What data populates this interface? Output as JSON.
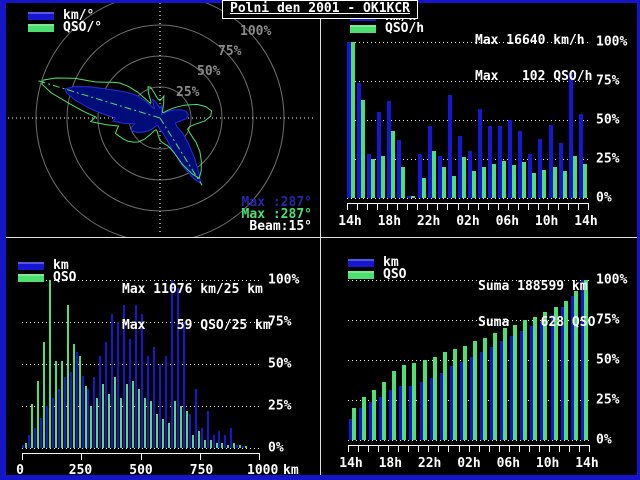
{
  "app": {
    "title": "Polni den 2001 - OK1KCR"
  },
  "colors": {
    "frame_blue": "#1414c8",
    "divider": "#e0e0e0",
    "bar_blue": "#1717d2",
    "bar_green": "#4de070",
    "ring_gray": "#6f6f6f",
    "ring_label_gray": "#8a8a8a",
    "dim_blue_text": "#2727a6",
    "radar_km_fill": "#000d78",
    "radar_km_stroke": "#2a2ae0"
  },
  "polar": {
    "ring_labels": [
      "25%",
      "50%",
      "75%",
      "100%"
    ],
    "stats": {
      "max_km": "Max :287°",
      "max_qso": "Max :287°",
      "beam": "Beam:15°"
    }
  },
  "chart_data": [
    {
      "type": "polar",
      "name": "rate-per-degree",
      "title": "km and QSO per beam heading (% of max)",
      "beam_azimuth_deg": 287,
      "beam_width_deg": 15,
      "max_km_azimuth_deg": 287,
      "max_qso_azimuth_deg": 287,
      "ring_percents": [
        25,
        50,
        75,
        100
      ],
      "axis_lines": [
        {
          "az": 287,
          "pct": 103
        },
        {
          "az": 148,
          "pct": 64
        }
      ],
      "series": [
        {
          "name": "km/°",
          "points": [
            [
              0,
              8
            ],
            [
              8,
              10
            ],
            [
              14,
              6
            ],
            [
              20,
              4
            ],
            [
              28,
              3
            ],
            [
              36,
              4
            ],
            [
              44,
              6
            ],
            [
              52,
              9
            ],
            [
              60,
              13
            ],
            [
              68,
              18
            ],
            [
              76,
              22
            ],
            [
              84,
              23
            ],
            [
              92,
              21
            ],
            [
              100,
              16
            ],
            [
              108,
              13
            ],
            [
              116,
              15
            ],
            [
              124,
              22
            ],
            [
              132,
              31
            ],
            [
              140,
              44
            ],
            [
              145,
              55
            ],
            [
              148,
              62
            ],
            [
              151,
              56
            ],
            [
              155,
              42
            ],
            [
              159,
              27
            ],
            [
              164,
              16
            ],
            [
              170,
              12
            ],
            [
              176,
              10
            ],
            [
              182,
              9
            ],
            [
              190,
              7
            ],
            [
              198,
              6
            ],
            [
              206,
              7
            ],
            [
              214,
              10
            ],
            [
              222,
              14
            ],
            [
              230,
              18
            ],
            [
              238,
              22
            ],
            [
              246,
              25
            ],
            [
              252,
              24
            ],
            [
              257,
              21
            ],
            [
              262,
              30
            ],
            [
              266,
              38
            ],
            [
              270,
              36
            ],
            [
              274,
              46
            ],
            [
              278,
              58
            ],
            [
              282,
              70
            ],
            [
              285,
              78
            ],
            [
              287,
              80
            ],
            [
              290,
              74
            ],
            [
              294,
              62
            ],
            [
              298,
              50
            ],
            [
              302,
              42
            ],
            [
              306,
              36
            ],
            [
              310,
              31
            ],
            [
              314,
              26
            ],
            [
              318,
              20
            ],
            [
              322,
              14
            ],
            [
              326,
              10
            ],
            [
              330,
              9
            ],
            [
              334,
              12
            ],
            [
              338,
              16
            ],
            [
              342,
              15
            ],
            [
              346,
              13
            ],
            [
              350,
              11
            ],
            [
              355,
              9
            ]
          ]
        },
        {
          "name": "QSO/°",
          "points": [
            [
              0,
              14
            ],
            [
              6,
              16
            ],
            [
              10,
              18
            ],
            [
              14,
              12
            ],
            [
              18,
              7
            ],
            [
              24,
              5
            ],
            [
              30,
              5
            ],
            [
              38,
              6
            ],
            [
              46,
              9
            ],
            [
              54,
              14
            ],
            [
              62,
              22
            ],
            [
              70,
              32
            ],
            [
              76,
              38
            ],
            [
              82,
              42
            ],
            [
              88,
              41
            ],
            [
              94,
              36
            ],
            [
              100,
              29
            ],
            [
              106,
              25
            ],
            [
              112,
              24
            ],
            [
              118,
              28
            ],
            [
              124,
              35
            ],
            [
              130,
              42
            ],
            [
              136,
              48
            ],
            [
              142,
              54
            ],
            [
              147,
              58
            ],
            [
              150,
              52
            ],
            [
              154,
              42
            ],
            [
              158,
              30
            ],
            [
              163,
              24
            ],
            [
              168,
              22
            ],
            [
              174,
              20
            ],
            [
              180,
              18
            ],
            [
              186,
              14
            ],
            [
              192,
              11
            ],
            [
              198,
              10
            ],
            [
              204,
              11
            ],
            [
              210,
              15
            ],
            [
              216,
              21
            ],
            [
              222,
              26
            ],
            [
              228,
              29
            ],
            [
              234,
              32
            ],
            [
              240,
              34
            ],
            [
              246,
              36
            ],
            [
              251,
              38
            ],
            [
              255,
              36
            ],
            [
              259,
              34
            ],
            [
              263,
              44
            ],
            [
              267,
              56
            ],
            [
              271,
              52
            ],
            [
              275,
              62
            ],
            [
              279,
              74
            ],
            [
              283,
              90
            ],
            [
              286,
              99
            ],
            [
              288,
              99
            ],
            [
              291,
              90
            ],
            [
              295,
              76
            ],
            [
              299,
              60
            ],
            [
              303,
              53
            ],
            [
              307,
              48
            ],
            [
              311,
              43
            ],
            [
              315,
              36
            ],
            [
              319,
              28
            ],
            [
              323,
              19
            ],
            [
              327,
              14
            ],
            [
              331,
              15
            ],
            [
              335,
              22
            ],
            [
              339,
              27
            ],
            [
              343,
              26
            ],
            [
              347,
              21
            ],
            [
              351,
              17
            ],
            [
              355,
              15
            ]
          ]
        }
      ]
    },
    {
      "type": "bar",
      "name": "hourly-rate",
      "stats": [
        "Max 16640 km/h",
        "Max   102 QSO/h"
      ],
      "max_km_per_h": 16640,
      "max_qso_per_h": 102,
      "y_ticks": [
        "100%",
        "75%",
        "50%",
        "25%",
        "0%"
      ],
      "x_ticks": [
        "14h",
        "18h",
        "22h",
        "02h",
        "06h",
        "10h",
        "14h"
      ],
      "series": [
        {
          "name": "km/h",
          "values": [
            100,
            74,
            28,
            55,
            62,
            37,
            1,
            28,
            46,
            27,
            66,
            40,
            30,
            57,
            46,
            46,
            50,
            43,
            28,
            38,
            47,
            35,
            80,
            54
          ]
        },
        {
          "name": "QSO/h",
          "values": [
            100,
            63,
            25,
            27,
            43,
            20,
            1,
            13,
            30,
            20,
            14,
            26,
            17,
            20,
            22,
            24,
            21,
            23,
            16,
            18,
            20,
            17,
            27,
            22
          ]
        }
      ]
    },
    {
      "type": "bar",
      "name": "distance-histogram",
      "stats": [
        "Max 11076 km/25 km",
        "Max    59 QSO/25 km"
      ],
      "max_km_per_bin": 11076,
      "max_qso_per_bin": 59,
      "bin_km": 25,
      "y_ticks": [
        "100%",
        "75%",
        "50%",
        "25%",
        "0%"
      ],
      "x_ticks": [
        "0",
        "250",
        "500",
        "750",
        "1000"
      ],
      "x_unit": "km",
      "series": [
        {
          "name": "km",
          "values": [
            2,
            8,
            12,
            18,
            25,
            30,
            35,
            42,
            45,
            57,
            43,
            35,
            42,
            55,
            63,
            80,
            75,
            85,
            65,
            85,
            80,
            55,
            60,
            50,
            55,
            100,
            95,
            75,
            20,
            35,
            12,
            22,
            8,
            10,
            8,
            12,
            2,
            1,
            0,
            0
          ]
        },
        {
          "name": "QSO",
          "values": [
            3,
            26,
            40,
            63,
            100,
            52,
            52,
            85,
            62,
            55,
            37,
            25,
            30,
            38,
            32,
            42,
            30,
            38,
            40,
            35,
            30,
            28,
            20,
            17,
            15,
            28,
            25,
            22,
            8,
            10,
            5,
            5,
            3,
            3,
            2,
            3,
            2,
            1,
            0,
            0
          ]
        }
      ]
    },
    {
      "type": "bar",
      "name": "cumulative-sum",
      "stats": [
        "Suma 188599 km",
        "Suma    628 QSO"
      ],
      "suma_km": 188599,
      "suma_qso": 628,
      "y_ticks": [
        "100%",
        "75%",
        "50%",
        "25%",
        "0%"
      ],
      "x_ticks": [
        "14h",
        "18h",
        "22h",
        "02h",
        "06h",
        "10h",
        "14h"
      ],
      "series": [
        {
          "name": "km",
          "values": [
            13,
            20,
            24,
            27,
            31,
            34,
            34,
            36,
            39,
            42,
            46,
            49,
            52,
            55,
            58,
            62,
            65,
            68,
            71,
            74,
            78,
            83,
            90,
            100
          ]
        },
        {
          "name": "QSO",
          "values": [
            20,
            27,
            31,
            36,
            43,
            47,
            48,
            50,
            52,
            55,
            57,
            59,
            62,
            64,
            67,
            70,
            72,
            75,
            77,
            80,
            83,
            87,
            93,
            100
          ]
        }
      ]
    }
  ]
}
